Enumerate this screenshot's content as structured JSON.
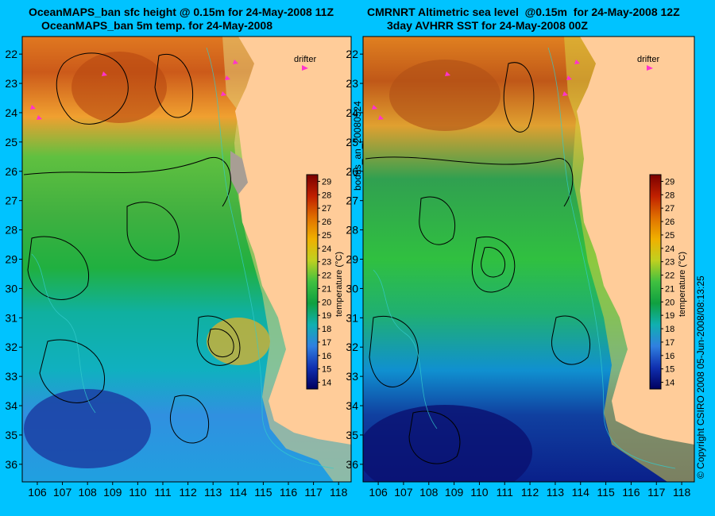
{
  "panels": [
    {
      "title_line1": "OceanMAPS_ban sfc height @ 0.15m for 24-May-2008 11Z",
      "title_line2": "OceanMAPS_ban 5m temp. for 24-May-2008",
      "drifter_label": "drifter"
    },
    {
      "title_line1": "CMRNRT Altimetric sea level  @0.15m  for 24-May-2008 12Z",
      "title_line2": "3day AVHRR SST for 24-May-2008 00Z",
      "drifter_label": "drifter"
    }
  ],
  "map": {
    "longitude_ticks": [
      "106",
      "107",
      "108",
      "109",
      "110",
      "111",
      "112",
      "113",
      "114",
      "115",
      "116",
      "117",
      "118"
    ],
    "latitude_ticks": [
      "22",
      "23",
      "24",
      "25",
      "26",
      "27",
      "28",
      "29",
      "30",
      "31",
      "32",
      "33",
      "34",
      "35",
      "36"
    ],
    "lon_range": [
      105.4,
      118.5
    ],
    "lat_range": [
      21.4,
      36.6
    ]
  },
  "colorbar": {
    "label": "temperature (°C)",
    "ticks": [
      "29",
      "28",
      "27",
      "26",
      "25",
      "24",
      "23",
      "22",
      "21",
      "20",
      "19",
      "18",
      "17",
      "16",
      "15",
      "14"
    ]
  },
  "colors": {
    "background": "#00c3ff",
    "land": "#ffcc99",
    "contour": "#000000",
    "isobath": "#33cccc",
    "drifter": "#ff33cc"
  },
  "side_labels": {
    "analysis_id": "bodas_an_20080524",
    "copyright": "© Copyright CSIRO 2008    05-Jun-2008/08:13:25"
  }
}
